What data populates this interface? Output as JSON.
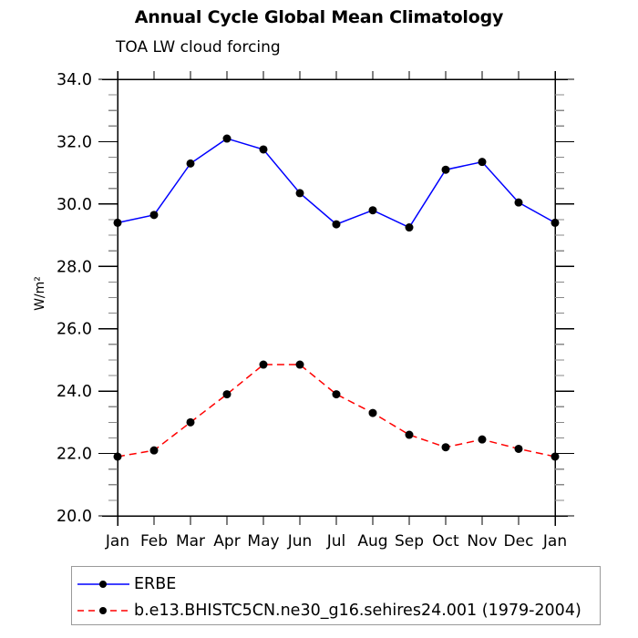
{
  "chart_data": {
    "type": "line",
    "title": "Annual Cycle Global Mean Climatology",
    "subtitle": "TOA LW cloud forcing",
    "ylabel": "W/m²",
    "xlabel": "",
    "categories": [
      "Jan",
      "Feb",
      "Mar",
      "Apr",
      "May",
      "Jun",
      "Jul",
      "Aug",
      "Sep",
      "Oct",
      "Nov",
      "Dec",
      "Jan"
    ],
    "ylim": [
      20.0,
      34.0
    ],
    "y_major_tick_values": [
      20,
      22,
      24,
      26,
      28,
      30,
      32,
      34
    ],
    "y_major_tick_labels": [
      "20.0",
      "22.0",
      "24.0",
      "26.0",
      "28.0",
      "30.0",
      "32.0",
      "34.0"
    ],
    "y_minor_tick_step": 0.5,
    "grid": false,
    "legend_position": "bottom",
    "marker_color": "#000000",
    "axis_color": "#000000",
    "minor_tick_color": "#888888",
    "series": [
      {
        "name": "ERBE",
        "color": "#0000ff",
        "line_style": "solid",
        "marker": "filled-black-circle",
        "values": [
          29.4,
          29.65,
          31.3,
          32.1,
          31.75,
          30.35,
          29.35,
          29.8,
          29.25,
          31.1,
          31.35,
          30.05,
          29.4
        ]
      },
      {
        "name": "b.e13.BHISTC5CN.ne30_g16.sehires24.001 (1979-2004)",
        "color": "#ff0000",
        "line_style": "dashed",
        "marker": "filled-black-circle",
        "values": [
          21.9,
          22.1,
          23.0,
          23.9,
          24.85,
          24.85,
          23.9,
          23.3,
          22.6,
          22.2,
          22.45,
          22.15,
          21.9
        ]
      }
    ]
  }
}
